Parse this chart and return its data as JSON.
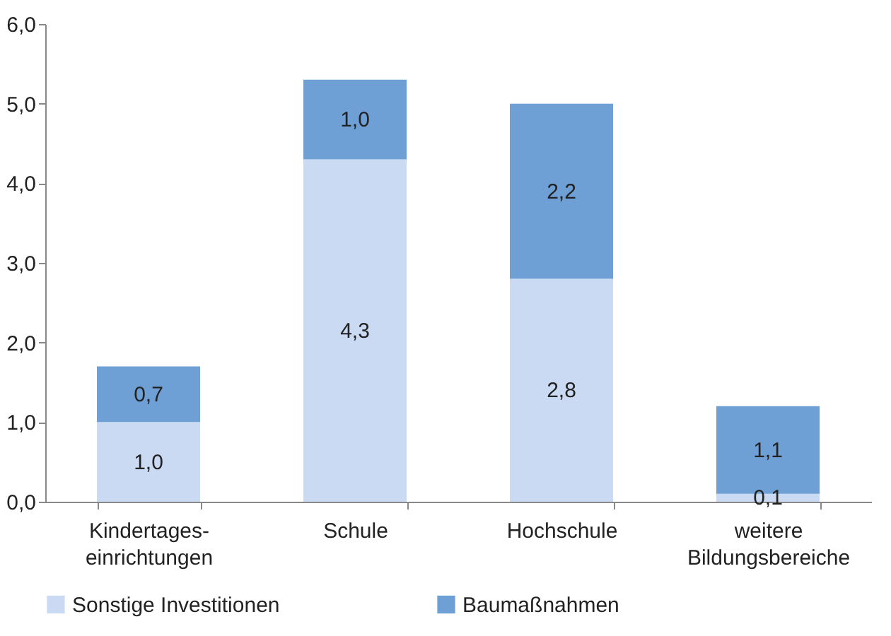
{
  "chart_data": {
    "type": "bar",
    "stacked": true,
    "categories": [
      "Kindertages-\neinrichtungen",
      "Schule",
      "Hochschule",
      "weitere\nBildungsbereiche"
    ],
    "series": [
      {
        "name": "Sonstige Investitionen",
        "color": "#cbdaf3",
        "values": [
          1.0,
          4.3,
          2.8,
          0.1
        ],
        "value_labels": [
          "1,0",
          "4,3",
          "2,8",
          "0,1"
        ]
      },
      {
        "name": "Baumaßnahmen",
        "color": "#6e9fd5",
        "values": [
          0.7,
          1.0,
          2.2,
          1.1
        ],
        "value_labels": [
          "0,7",
          "1,0",
          "2,2",
          "1,1"
        ]
      }
    ],
    "ylim": [
      0,
      6
    ],
    "yticks": [
      {
        "value": 0,
        "label": "0,0"
      },
      {
        "value": 1,
        "label": "1,0"
      },
      {
        "value": 2,
        "label": "2,0"
      },
      {
        "value": 3,
        "label": "3,0"
      },
      {
        "value": 4,
        "label": "4,0"
      },
      {
        "value": 5,
        "label": "5,0"
      },
      {
        "value": 6,
        "label": "6,0"
      }
    ],
    "grid": false,
    "legend": "bottom"
  }
}
